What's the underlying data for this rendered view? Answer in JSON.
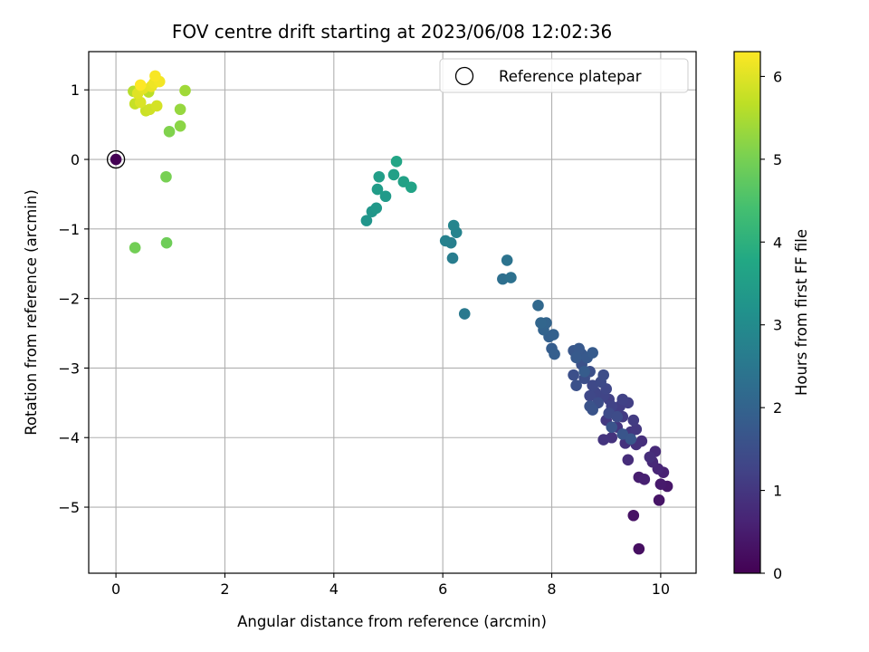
{
  "chart_data": {
    "type": "scatter",
    "title": "FOV centre drift starting at 2023/06/08 12:02:36",
    "xlabel": "Angular distance from reference (arcmin)",
    "ylabel": "Rotation from reference (arcmin)",
    "xlim": [
      -0.5,
      10.65
    ],
    "ylim": [
      -5.95,
      1.55
    ],
    "xticks": [
      0,
      2,
      4,
      6,
      8,
      10
    ],
    "yticks": [
      1,
      0,
      -1,
      -2,
      -3,
      -4,
      -5
    ],
    "grid": true,
    "colormap": "viridis",
    "colorbar": {
      "label": "Hours from first FF file",
      "range": [
        0,
        6.3
      ],
      "ticks": [
        0,
        1,
        2,
        3,
        4,
        5,
        6
      ]
    },
    "legend": {
      "position": "top-right",
      "entries": [
        "Reference platepar"
      ]
    },
    "reference_point": {
      "x": 0,
      "y": 0
    },
    "colors": {
      "grid": "#b0b0b0",
      "reference_marker_edge": "#000000"
    },
    "points": [
      {
        "x": 0.0,
        "y": 0.0,
        "c": 0.0
      },
      {
        "x": 9.6,
        "y": -5.6,
        "c": 0.25
      },
      {
        "x": 9.5,
        "y": -5.12,
        "c": 0.3
      },
      {
        "x": 9.97,
        "y": -4.9,
        "c": 0.35
      },
      {
        "x": 10.12,
        "y": -4.7,
        "c": 0.4
      },
      {
        "x": 10.0,
        "y": -4.67,
        "c": 0.45
      },
      {
        "x": 9.6,
        "y": -4.57,
        "c": 0.5
      },
      {
        "x": 9.7,
        "y": -4.6,
        "c": 0.55
      },
      {
        "x": 10.05,
        "y": -4.5,
        "c": 0.6
      },
      {
        "x": 9.95,
        "y": -4.45,
        "c": 0.65
      },
      {
        "x": 9.85,
        "y": -4.35,
        "c": 0.7
      },
      {
        "x": 9.9,
        "y": -4.2,
        "c": 0.75
      },
      {
        "x": 9.4,
        "y": -4.32,
        "c": 0.8
      },
      {
        "x": 9.8,
        "y": -4.28,
        "c": 0.82
      },
      {
        "x": 9.65,
        "y": -4.05,
        "c": 0.85
      },
      {
        "x": 9.55,
        "y": -4.1,
        "c": 0.88
      },
      {
        "x": 9.35,
        "y": -4.08,
        "c": 0.9
      },
      {
        "x": 9.1,
        "y": -4.0,
        "c": 0.92
      },
      {
        "x": 8.95,
        "y": -4.03,
        "c": 0.95
      },
      {
        "x": 9.45,
        "y": -3.92,
        "c": 0.98
      },
      {
        "x": 9.2,
        "y": -3.85,
        "c": 1.0
      },
      {
        "x": 9.55,
        "y": -3.88,
        "c": 1.02
      },
      {
        "x": 9.0,
        "y": -3.75,
        "c": 1.05
      },
      {
        "x": 9.3,
        "y": -3.7,
        "c": 1.08
      },
      {
        "x": 9.5,
        "y": -3.75,
        "c": 1.1
      },
      {
        "x": 9.15,
        "y": -3.6,
        "c": 1.12
      },
      {
        "x": 9.25,
        "y": -3.55,
        "c": 1.15
      },
      {
        "x": 9.4,
        "y": -3.5,
        "c": 1.18
      },
      {
        "x": 9.05,
        "y": -3.45,
        "c": 1.2
      },
      {
        "x": 9.3,
        "y": -3.45,
        "c": 1.22
      },
      {
        "x": 9.1,
        "y": -3.55,
        "c": 1.25
      },
      {
        "x": 8.95,
        "y": -3.4,
        "c": 1.28
      },
      {
        "x": 8.8,
        "y": -3.35,
        "c": 1.3
      },
      {
        "x": 9.0,
        "y": -3.3,
        "c": 1.32
      },
      {
        "x": 8.7,
        "y": -3.4,
        "c": 1.35
      },
      {
        "x": 8.75,
        "y": -3.25,
        "c": 1.38
      },
      {
        "x": 8.9,
        "y": -3.2,
        "c": 1.4
      },
      {
        "x": 9.05,
        "y": -3.65,
        "c": 1.42
      },
      {
        "x": 9.2,
        "y": -3.7,
        "c": 1.44
      },
      {
        "x": 8.85,
        "y": -3.5,
        "c": 1.46
      },
      {
        "x": 8.95,
        "y": -3.1,
        "c": 1.48
      },
      {
        "x": 8.6,
        "y": -3.15,
        "c": 1.5
      },
      {
        "x": 8.7,
        "y": -3.05,
        "c": 1.52
      },
      {
        "x": 8.4,
        "y": -3.1,
        "c": 1.54
      },
      {
        "x": 8.45,
        "y": -3.25,
        "c": 1.56
      },
      {
        "x": 8.55,
        "y": -2.95,
        "c": 1.58
      },
      {
        "x": 8.7,
        "y": -3.55,
        "c": 1.6
      },
      {
        "x": 8.75,
        "y": -3.6,
        "c": 1.62
      },
      {
        "x": 9.1,
        "y": -3.85,
        "c": 1.64
      },
      {
        "x": 9.3,
        "y": -3.95,
        "c": 1.66
      },
      {
        "x": 9.45,
        "y": -4.02,
        "c": 1.68
      },
      {
        "x": 8.4,
        "y": -2.75,
        "c": 1.7
      },
      {
        "x": 8.55,
        "y": -2.8,
        "c": 1.72
      },
      {
        "x": 8.5,
        "y": -2.72,
        "c": 1.74
      },
      {
        "x": 8.65,
        "y": -2.85,
        "c": 1.76
      },
      {
        "x": 8.45,
        "y": -2.85,
        "c": 1.78
      },
      {
        "x": 8.75,
        "y": -2.78,
        "c": 1.8
      },
      {
        "x": 8.6,
        "y": -3.05,
        "c": 1.82
      },
      {
        "x": 8.0,
        "y": -2.72,
        "c": 1.85
      },
      {
        "x": 8.05,
        "y": -2.8,
        "c": 1.88
      },
      {
        "x": 7.95,
        "y": -2.55,
        "c": 1.92
      },
      {
        "x": 8.03,
        "y": -2.52,
        "c": 1.95
      },
      {
        "x": 7.85,
        "y": -2.45,
        "c": 1.98
      },
      {
        "x": 7.9,
        "y": -2.35,
        "c": 2.02
      },
      {
        "x": 7.8,
        "y": -2.35,
        "c": 2.06
      },
      {
        "x": 7.75,
        "y": -2.1,
        "c": 2.12
      },
      {
        "x": 7.1,
        "y": -1.72,
        "c": 2.3
      },
      {
        "x": 7.25,
        "y": -1.7,
        "c": 2.35
      },
      {
        "x": 7.18,
        "y": -1.45,
        "c": 2.4
      },
      {
        "x": 6.4,
        "y": -2.22,
        "c": 2.55
      },
      {
        "x": 6.18,
        "y": -1.42,
        "c": 2.65
      },
      {
        "x": 6.15,
        "y": -1.2,
        "c": 2.7
      },
      {
        "x": 6.05,
        "y": -1.17,
        "c": 2.75
      },
      {
        "x": 6.25,
        "y": -1.05,
        "c": 2.8
      },
      {
        "x": 6.2,
        "y": -0.95,
        "c": 2.85
      },
      {
        "x": 4.6,
        "y": -0.88,
        "c": 3.25
      },
      {
        "x": 4.7,
        "y": -0.75,
        "c": 3.3
      },
      {
        "x": 4.78,
        "y": -0.7,
        "c": 3.35
      },
      {
        "x": 4.95,
        "y": -0.53,
        "c": 3.4
      },
      {
        "x": 4.8,
        "y": -0.43,
        "c": 3.45
      },
      {
        "x": 4.83,
        "y": -0.25,
        "c": 3.5
      },
      {
        "x": 5.1,
        "y": -0.22,
        "c": 3.55
      },
      {
        "x": 5.28,
        "y": -0.32,
        "c": 3.6
      },
      {
        "x": 5.42,
        "y": -0.4,
        "c": 3.65
      },
      {
        "x": 5.15,
        "y": -0.03,
        "c": 3.7
      },
      {
        "x": 0.93,
        "y": -1.2,
        "c": 4.9
      },
      {
        "x": 0.35,
        "y": -1.27,
        "c": 4.95
      },
      {
        "x": 0.92,
        "y": -0.25,
        "c": 5.0
      },
      {
        "x": 0.98,
        "y": 0.4,
        "c": 5.1
      },
      {
        "x": 1.18,
        "y": 0.48,
        "c": 5.2
      },
      {
        "x": 1.18,
        "y": 0.72,
        "c": 5.3
      },
      {
        "x": 1.27,
        "y": 0.99,
        "c": 5.4
      },
      {
        "x": 0.32,
        "y": 0.98,
        "c": 5.6
      },
      {
        "x": 0.6,
        "y": 0.97,
        "c": 5.65
      },
      {
        "x": 0.35,
        "y": 0.8,
        "c": 5.75
      },
      {
        "x": 0.55,
        "y": 0.7,
        "c": 5.8
      },
      {
        "x": 0.62,
        "y": 0.72,
        "c": 5.85
      },
      {
        "x": 0.75,
        "y": 0.77,
        "c": 5.9
      },
      {
        "x": 0.45,
        "y": 0.82,
        "c": 5.95
      },
      {
        "x": 0.4,
        "y": 0.95,
        "c": 6.0
      },
      {
        "x": 0.5,
        "y": 1.02,
        "c": 6.05
      },
      {
        "x": 0.65,
        "y": 1.05,
        "c": 6.1
      },
      {
        "x": 0.7,
        "y": 1.1,
        "c": 6.15
      },
      {
        "x": 0.8,
        "y": 1.12,
        "c": 6.2
      },
      {
        "x": 0.72,
        "y": 1.2,
        "c": 6.25
      },
      {
        "x": 0.45,
        "y": 1.07,
        "c": 6.3
      }
    ]
  }
}
